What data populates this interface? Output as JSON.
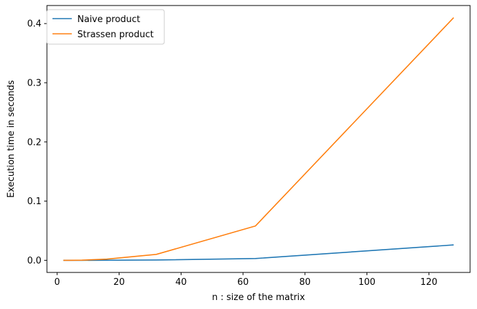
{
  "chart_data": {
    "type": "line",
    "title": "",
    "xlabel": "n : size of the matrix",
    "ylabel": "Execution time in seconds",
    "xlim": [
      -3.3,
      133.3
    ],
    "ylim": [
      -0.0205,
      0.4305
    ],
    "xticks": [
      0,
      20,
      40,
      60,
      80,
      100,
      120
    ],
    "xtick_labels": [
      "0",
      "20",
      "40",
      "60",
      "80",
      "100",
      "120"
    ],
    "yticks": [
      0.0,
      0.1,
      0.2,
      0.3,
      0.4
    ],
    "ytick_labels": [
      "0.0",
      "0.1",
      "0.2",
      "0.3",
      "0.4"
    ],
    "grid": false,
    "legend_position": "top-left",
    "series": [
      {
        "name": "Naive product",
        "color": "#1f77b4",
        "x": [
          2,
          4,
          8,
          16,
          32,
          64,
          128
        ],
        "y": [
          0.0,
          0.0,
          0.0,
          0.0001,
          0.0005,
          0.003,
          0.026
        ]
      },
      {
        "name": "Strassen product",
        "color": "#ff7f0e",
        "x": [
          2,
          4,
          8,
          16,
          32,
          64,
          128
        ],
        "y": [
          0.0,
          0.0,
          0.0003,
          0.002,
          0.01,
          0.058,
          0.41
        ]
      }
    ]
  }
}
